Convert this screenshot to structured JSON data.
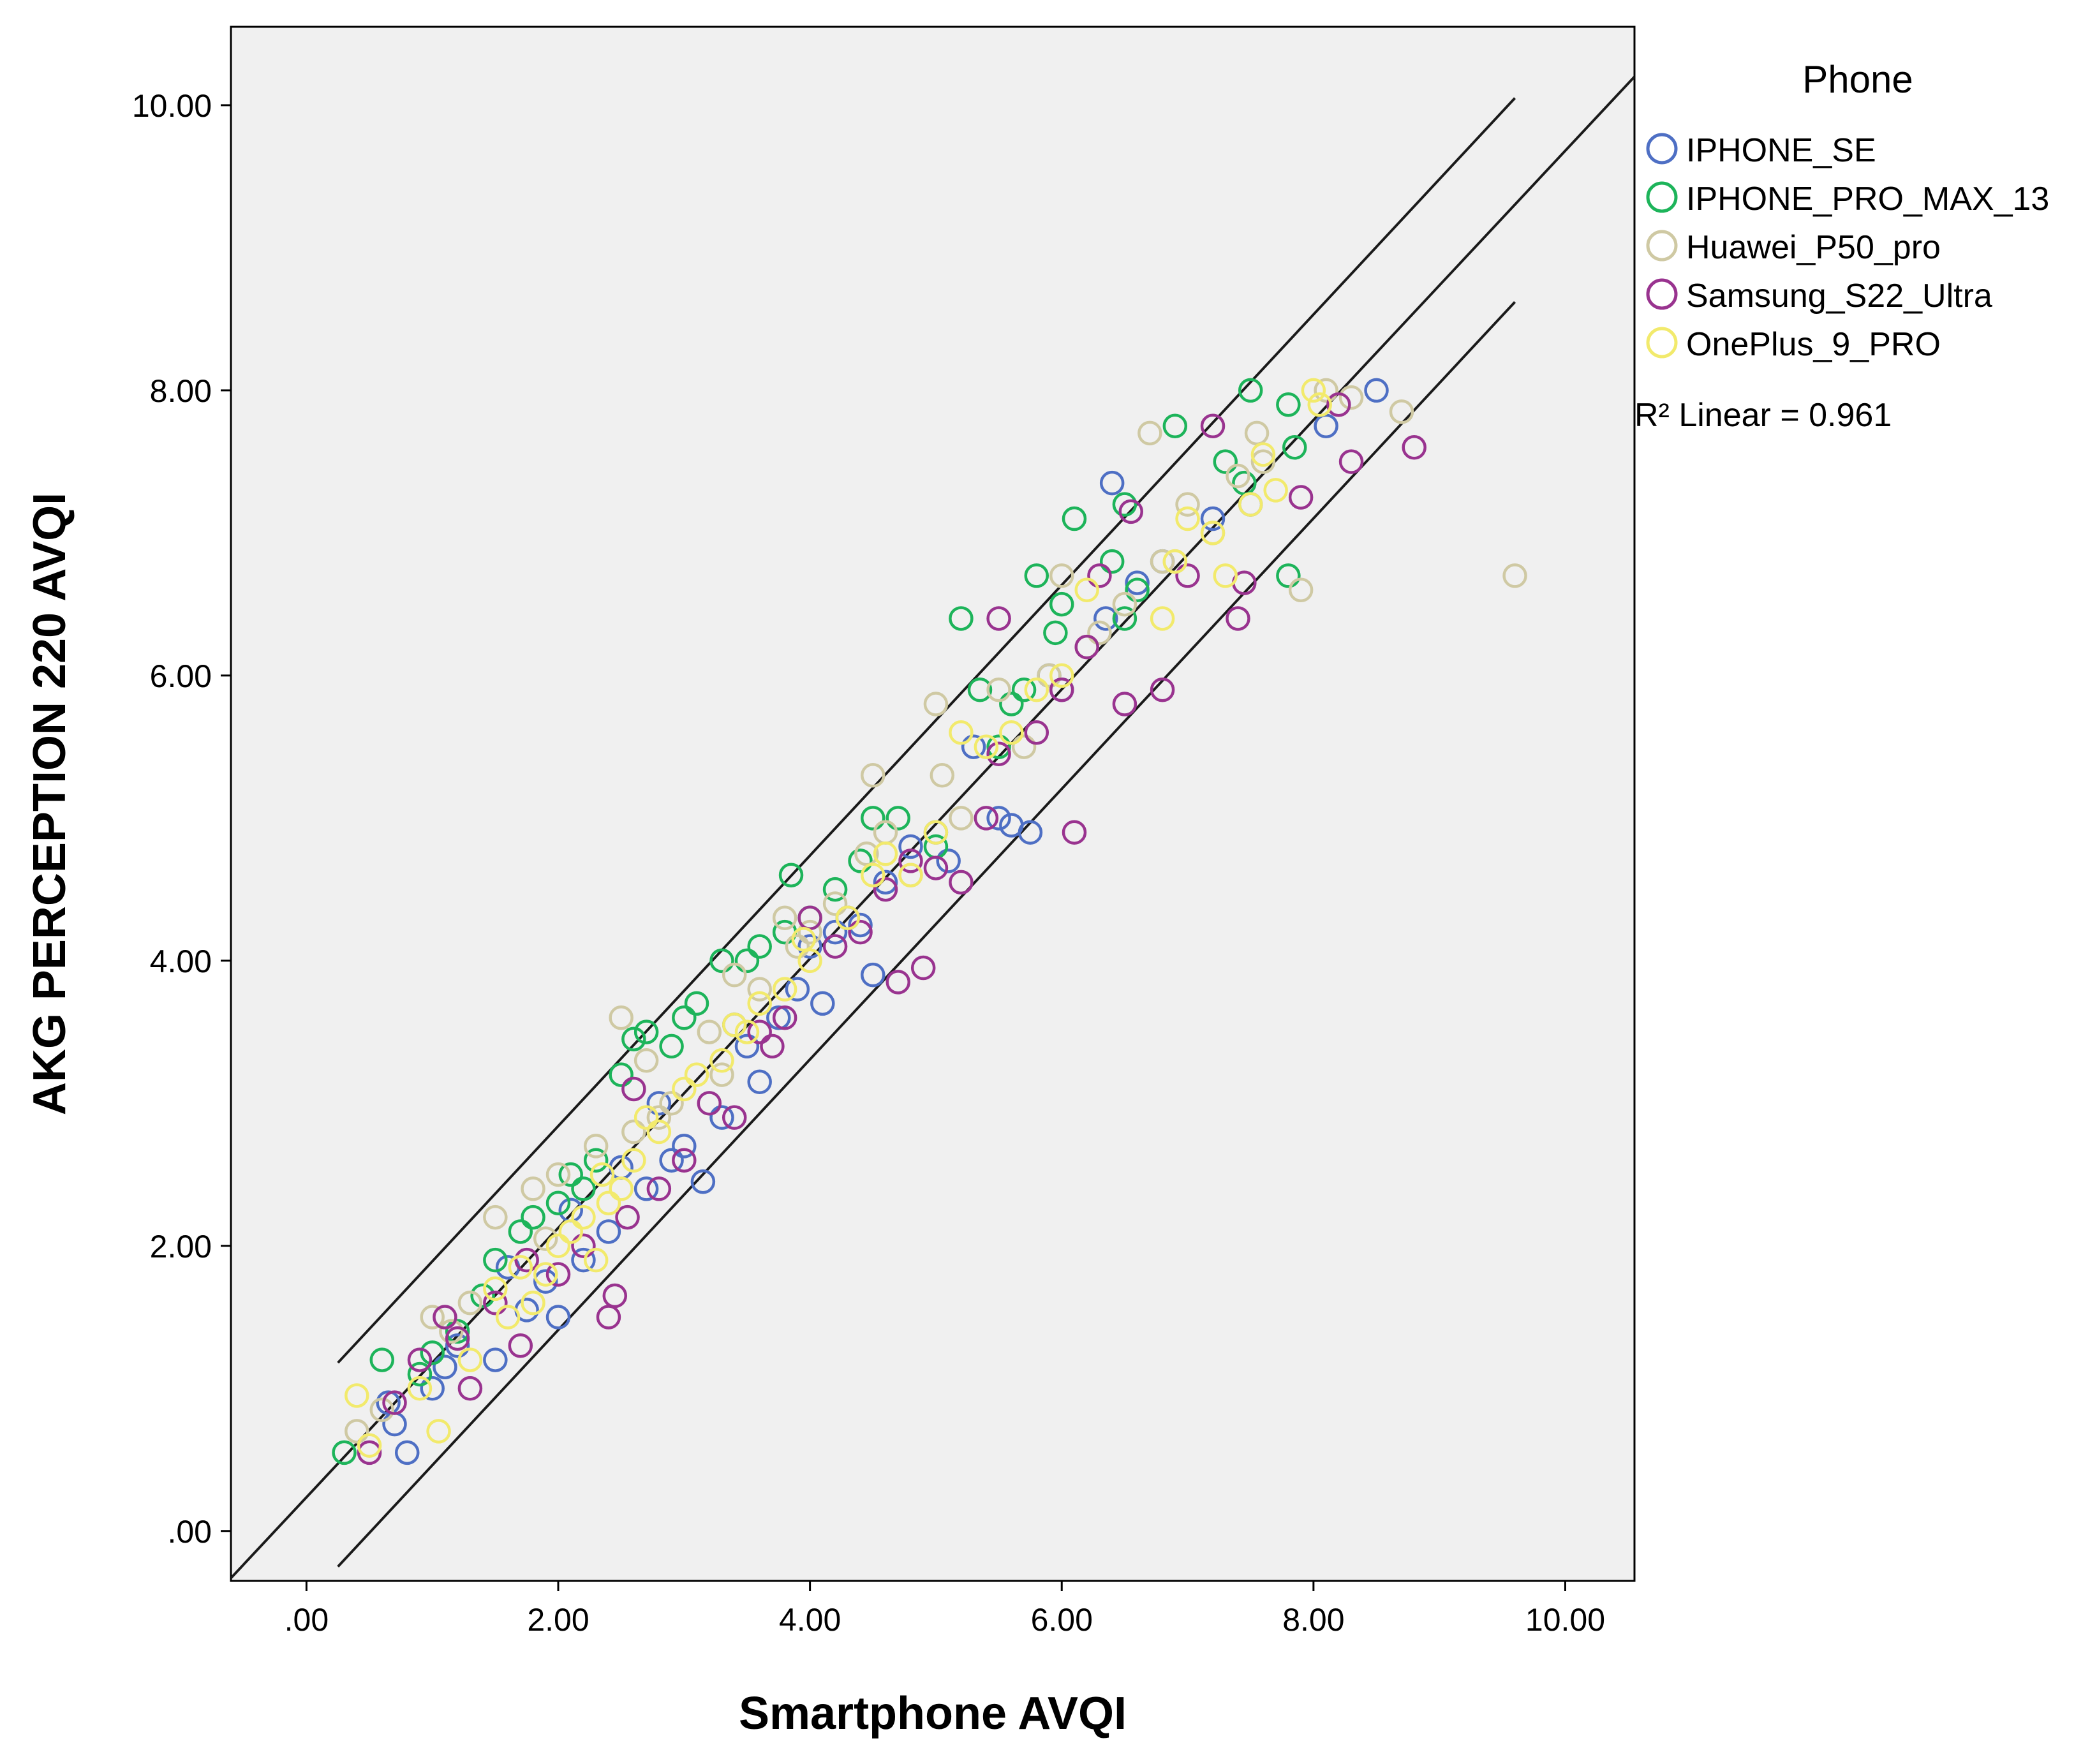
{
  "chart_data": {
    "type": "scatter",
    "title": "",
    "xlabel": "Smartphone AVQI",
    "ylabel": "AKG PERCEPTION 220 AVQI",
    "xlim": [
      -0.6,
      10.55
    ],
    "ylim": [
      -0.35,
      10.55
    ],
    "xticks": [
      0,
      2,
      4,
      6,
      8,
      10
    ],
    "yticks": [
      0,
      2,
      4,
      6,
      8,
      10
    ],
    "xtick_labels": [
      ".00",
      "2.00",
      "4.00",
      "6.00",
      "8.00",
      "10.00"
    ],
    "ytick_labels": [
      ".00",
      "2.00",
      "4.00",
      "6.00",
      "8.00",
      "10.00"
    ],
    "plot_background": "#f0f0f0",
    "grid": false,
    "legend": {
      "title": "Phone",
      "placement": "right-top",
      "fit_label": "R² Linear = 0.961"
    },
    "fit_lines": [
      {
        "x": [
          0.25,
          9.6
        ],
        "y": [
          1.18,
          10.05
        ]
      },
      {
        "x": [
          -0.6,
          10.55
        ],
        "y": [
          -0.33,
          10.2
        ]
      },
      {
        "x": [
          0.25,
          9.6
        ],
        "y": [
          -0.25,
          8.62
        ]
      }
    ],
    "series": [
      {
        "name": "IPHONE_SE",
        "color": "#4e6fc4",
        "x": [
          0.7,
          0.8,
          0.65,
          1.0,
          1.2,
          1.5,
          1.75,
          1.9,
          2.0,
          2.2,
          2.4,
          2.7,
          2.9,
          3.0,
          3.15,
          3.3,
          3.5,
          3.6,
          3.75,
          3.9,
          4.0,
          4.1,
          4.2,
          4.3,
          4.5,
          4.6,
          4.8,
          5.0,
          5.1,
          5.5,
          5.6,
          5.75,
          5.9,
          6.0,
          6.35,
          6.4,
          6.8,
          7.2,
          7.5,
          8.1,
          8.5,
          1.1,
          1.6,
          2.1,
          2.5,
          2.8,
          3.4,
          4.4,
          5.3,
          6.6
        ],
        "y": [
          0.75,
          0.55,
          0.9,
          1.0,
          1.3,
          1.2,
          1.55,
          1.75,
          1.5,
          1.9,
          2.1,
          2.4,
          2.6,
          2.7,
          2.45,
          2.9,
          3.4,
          3.15,
          3.6,
          3.8,
          4.1,
          3.7,
          4.2,
          4.3,
          3.9,
          4.55,
          4.8,
          4.9,
          4.7,
          5.0,
          4.95,
          4.9,
          6.0,
          5.9,
          6.4,
          7.35,
          6.8,
          7.1,
          7.2,
          7.75,
          8.0,
          1.15,
          1.85,
          2.25,
          2.55,
          3.0,
          3.55,
          4.25,
          5.5,
          6.65
        ]
      },
      {
        "name": "IPHONE_PRO_MAX_13",
        "color": "#1db45a",
        "x": [
          0.3,
          0.6,
          0.9,
          1.2,
          1.5,
          1.7,
          1.8,
          2.0,
          2.1,
          2.3,
          2.5,
          2.6,
          2.7,
          2.9,
          3.1,
          3.3,
          3.5,
          3.6,
          3.8,
          3.85,
          4.0,
          4.2,
          4.4,
          4.5,
          4.7,
          5.0,
          5.2,
          5.35,
          5.5,
          5.7,
          5.8,
          5.95,
          6.0,
          6.1,
          6.4,
          6.5,
          6.6,
          6.9,
          7.3,
          7.5,
          7.8,
          7.85,
          7.8,
          7.45,
          6.5,
          5.6,
          1.0,
          1.4,
          2.2,
          3.0
        ],
        "y": [
          0.55,
          1.2,
          1.1,
          1.4,
          1.9,
          2.1,
          2.2,
          2.3,
          2.5,
          2.6,
          3.2,
          3.45,
          3.5,
          3.4,
          3.7,
          4.0,
          4.0,
          4.1,
          4.2,
          4.6,
          4.3,
          4.5,
          4.7,
          5.0,
          5.0,
          4.8,
          6.4,
          5.9,
          5.5,
          5.9,
          6.7,
          6.3,
          6.5,
          7.1,
          6.8,
          7.2,
          6.6,
          7.75,
          7.5,
          8.0,
          7.9,
          7.6,
          6.7,
          7.35,
          6.4,
          5.8,
          1.25,
          1.65,
          2.4,
          3.6
        ]
      },
      {
        "name": "Huawei_P50_pro",
        "color": "#cfc9a3",
        "x": [
          0.4,
          0.6,
          1.0,
          1.3,
          1.5,
          1.8,
          2.0,
          2.3,
          2.5,
          2.7,
          2.9,
          3.2,
          3.4,
          3.6,
          3.8,
          4.0,
          4.2,
          4.5,
          4.8,
          5.0,
          5.2,
          5.5,
          5.7,
          5.9,
          6.0,
          6.2,
          6.5,
          6.7,
          6.8,
          7.0,
          7.2,
          7.4,
          7.6,
          7.9,
          8.1,
          8.7,
          9.6,
          6.9,
          5.05,
          4.6,
          3.3,
          2.6,
          1.9,
          1.15,
          2.8,
          3.9,
          4.45,
          6.3,
          7.55,
          8.3
        ],
        "y": [
          0.7,
          0.85,
          1.5,
          1.6,
          2.2,
          2.4,
          2.5,
          2.7,
          3.6,
          3.3,
          3.0,
          3.5,
          3.9,
          3.8,
          4.3,
          4.2,
          4.4,
          5.3,
          4.6,
          5.8,
          5.0,
          5.9,
          5.5,
          6.0,
          6.7,
          6.2,
          6.5,
          7.7,
          6.8,
          7.2,
          7.0,
          7.4,
          7.5,
          6.6,
          8.0,
          7.85,
          6.7,
          6.8,
          5.3,
          4.9,
          3.2,
          2.8,
          2.05,
          1.4,
          2.9,
          4.1,
          4.75,
          6.3,
          7.7,
          7.95
        ]
      },
      {
        "name": "Samsung_S22_Ultra",
        "color": "#99338f",
        "x": [
          0.5,
          0.7,
          0.9,
          1.1,
          1.3,
          1.5,
          1.7,
          2.0,
          2.2,
          2.4,
          2.45,
          2.6,
          2.8,
          3.0,
          3.2,
          3.4,
          3.6,
          3.8,
          4.0,
          4.2,
          4.4,
          4.6,
          4.7,
          4.8,
          5.0,
          5.2,
          5.4,
          5.5,
          5.8,
          6.0,
          6.1,
          6.2,
          6.3,
          6.5,
          6.8,
          7.0,
          7.2,
          7.4,
          7.45,
          7.9,
          8.2,
          8.3,
          8.8,
          6.55,
          5.5,
          4.9,
          3.7,
          2.55,
          1.75,
          1.2
        ],
        "y": [
          0.55,
          0.9,
          1.2,
          1.5,
          1.0,
          1.6,
          1.3,
          1.8,
          2.0,
          1.5,
          1.65,
          3.1,
          2.4,
          2.6,
          3.0,
          2.9,
          3.5,
          3.6,
          4.3,
          4.1,
          4.2,
          4.5,
          3.85,
          4.7,
          4.65,
          4.55,
          5.0,
          6.4,
          5.6,
          5.9,
          4.9,
          6.2,
          6.7,
          5.8,
          5.9,
          6.7,
          7.75,
          6.4,
          6.65,
          7.25,
          7.9,
          7.5,
          7.6,
          7.15,
          5.45,
          3.95,
          3.4,
          2.2,
          1.9,
          1.35
        ]
      },
      {
        "name": "OnePlus_9_PRO",
        "color": "#f2ea6c",
        "x": [
          0.4,
          0.5,
          0.9,
          1.05,
          1.3,
          1.6,
          1.8,
          1.9,
          2.0,
          2.1,
          2.2,
          2.3,
          2.4,
          2.5,
          2.6,
          2.8,
          3.0,
          3.3,
          3.5,
          3.6,
          3.8,
          4.0,
          4.3,
          4.5,
          4.8,
          5.0,
          5.4,
          5.6,
          6.0,
          6.2,
          6.8,
          7.0,
          7.2,
          7.3,
          7.5,
          7.6,
          7.7,
          8.0,
          8.05,
          6.9,
          5.8,
          4.6,
          3.4,
          2.7,
          1.5,
          1.7,
          2.35,
          3.1,
          3.95,
          5.2
        ],
        "y": [
          0.95,
          0.6,
          1.0,
          0.7,
          1.2,
          1.5,
          1.6,
          1.8,
          2.0,
          2.1,
          2.2,
          1.9,
          2.3,
          2.4,
          2.6,
          2.8,
          3.1,
          3.3,
          3.5,
          3.7,
          3.8,
          4.0,
          4.3,
          4.6,
          4.6,
          4.9,
          5.5,
          5.6,
          6.0,
          6.6,
          6.4,
          7.1,
          7.0,
          6.7,
          7.2,
          7.55,
          7.3,
          8.0,
          7.9,
          6.8,
          5.9,
          4.75,
          3.55,
          2.9,
          1.7,
          1.85,
          2.5,
          3.2,
          4.15,
          5.6
        ]
      }
    ]
  }
}
